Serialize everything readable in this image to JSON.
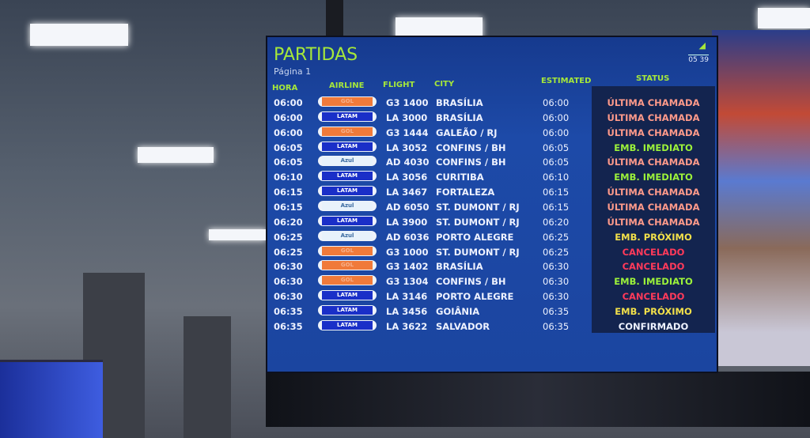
{
  "board": {
    "title": "PARTIDAS",
    "page": "Página 1",
    "clock": "05 39",
    "operator_logo": "aena",
    "headers": {
      "hora": "HORA",
      "airline": "AIRLINE",
      "flight": "FLIGHT",
      "city": "CITY",
      "estimated": "ESTIMATED",
      "status": "STATUS"
    },
    "status_colors": {
      "ÚLTIMA CHAMADA": "#ff9a8a",
      "EMB. IMEDIATO": "#9cf23a",
      "EMB. PRÓXIMO": "#f2e04a",
      "CANCELADO": "#ff3a5a",
      "CONFIRMADO": "#eef2ff"
    },
    "airline_colors": {
      "GOL": "#f07a3a",
      "LATAM": "#1a2fc8",
      "Azul": "#e8f2fb"
    },
    "rows": [
      {
        "hora": "06:00",
        "airline": "GOL",
        "flight": "G3 1400",
        "city": "BRASÍLIA",
        "estimated": "06:00",
        "status": "ÚLTIMA CHAMADA"
      },
      {
        "hora": "06:00",
        "airline": "LATAM",
        "flight": "LA 3000",
        "city": "BRASÍLIA",
        "estimated": "06:00",
        "status": "ÚLTIMA CHAMADA"
      },
      {
        "hora": "06:00",
        "airline": "GOL",
        "flight": "G3 1444",
        "city": "GALEÃO / RJ",
        "estimated": "06:00",
        "status": "ÚLTIMA CHAMADA"
      },
      {
        "hora": "06:05",
        "airline": "LATAM",
        "flight": "LA 3052",
        "city": "CONFINS / BH",
        "estimated": "06:05",
        "status": "EMB. IMEDIATO"
      },
      {
        "hora": "06:05",
        "airline": "Azul",
        "flight": "AD 4030",
        "city": "CONFINS / BH",
        "estimated": "06:05",
        "status": "ÚLTIMA CHAMADA"
      },
      {
        "hora": "06:10",
        "airline": "LATAM",
        "flight": "LA 3056",
        "city": "CURITIBA",
        "estimated": "06:10",
        "status": "EMB. IMEDIATO"
      },
      {
        "hora": "06:15",
        "airline": "LATAM",
        "flight": "LA 3467",
        "city": "FORTALEZA",
        "estimated": "06:15",
        "status": "ÚLTIMA CHAMADA"
      },
      {
        "hora": "06:15",
        "airline": "Azul",
        "flight": "AD 6050",
        "city": "ST. DUMONT / RJ",
        "estimated": "06:15",
        "status": "ÚLTIMA CHAMADA"
      },
      {
        "hora": "06:20",
        "airline": "LATAM",
        "flight": "LA 3900",
        "city": "ST. DUMONT / RJ",
        "estimated": "06:20",
        "status": "ÚLTIMA CHAMADA"
      },
      {
        "hora": "06:25",
        "airline": "Azul",
        "flight": "AD 6036",
        "city": "PORTO ALEGRE",
        "estimated": "06:25",
        "status": "EMB. PRÓXIMO"
      },
      {
        "hora": "06:25",
        "airline": "GOL",
        "flight": "G3 1000",
        "city": "ST. DUMONT / RJ",
        "estimated": "06:25",
        "status": "CANCELADO"
      },
      {
        "hora": "06:30",
        "airline": "GOL",
        "flight": "G3 1402",
        "city": "BRASÍLIA",
        "estimated": "06:30",
        "status": "CANCELADO"
      },
      {
        "hora": "06:30",
        "airline": "GOL",
        "flight": "G3 1304",
        "city": "CONFINS / BH",
        "estimated": "06:30",
        "status": "EMB. IMEDIATO"
      },
      {
        "hora": "06:30",
        "airline": "LATAM",
        "flight": "LA 3146",
        "city": "PORTO ALEGRE",
        "estimated": "06:30",
        "status": "CANCELADO"
      },
      {
        "hora": "06:35",
        "airline": "LATAM",
        "flight": "LA 3456",
        "city": "GOIÂNIA",
        "estimated": "06:35",
        "status": "EMB. PRÓXIMO"
      },
      {
        "hora": "06:35",
        "airline": "LATAM",
        "flight": "LA 3622",
        "city": "SALVADOR",
        "estimated": "06:35",
        "status": "CONFIRMADO"
      }
    ]
  }
}
